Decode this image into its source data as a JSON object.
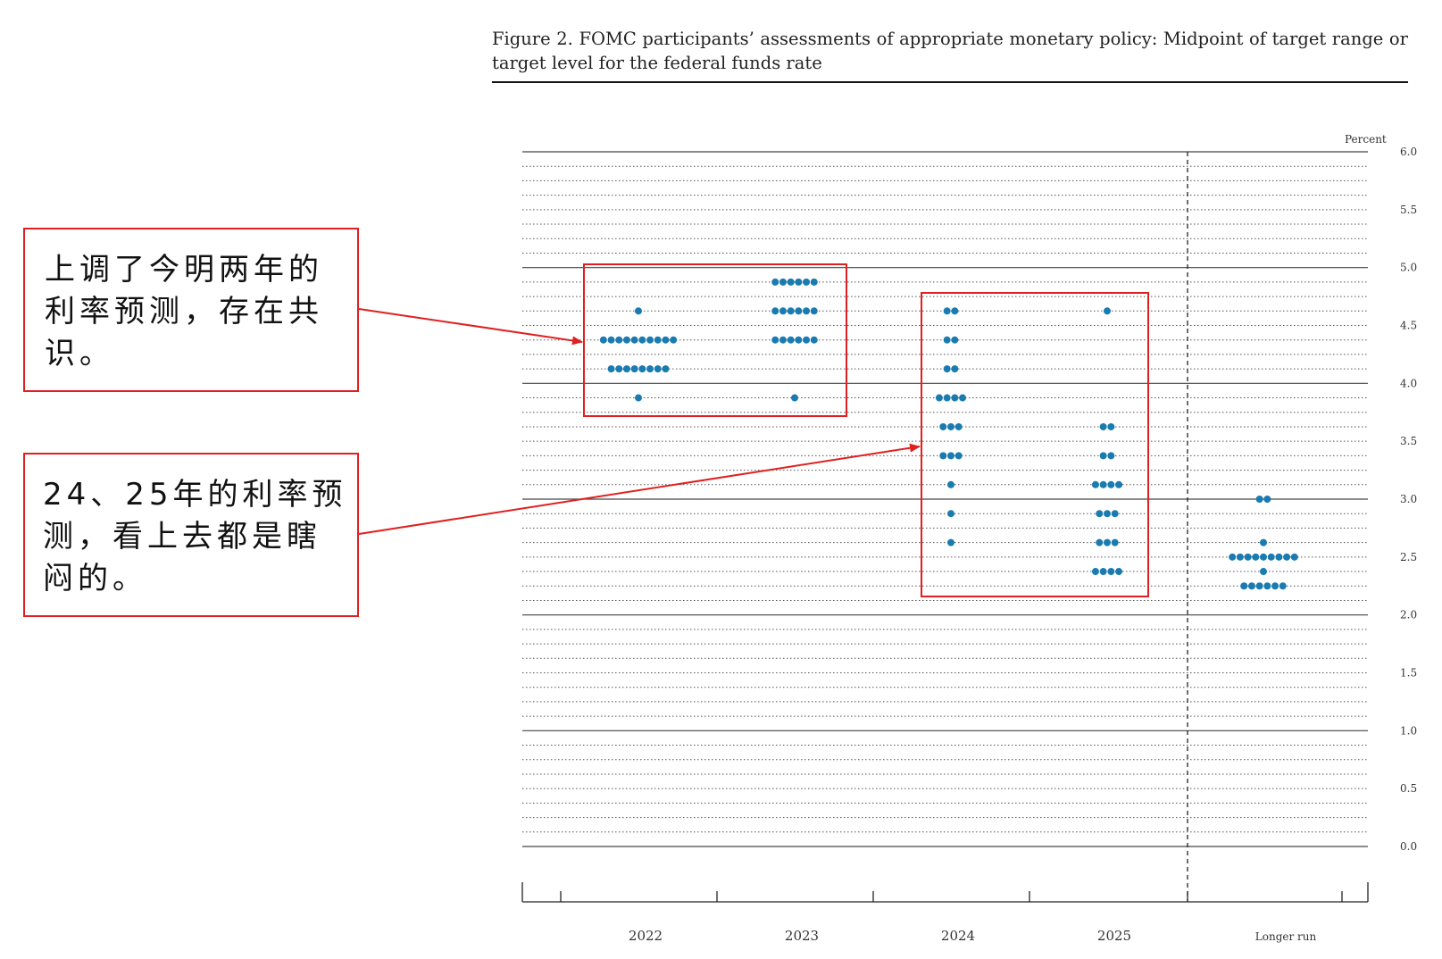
{
  "figure": {
    "title": "Figure 2.  FOMC participants’ assessments of appropriate monetary policy: Midpoint of target range or target level for the federal funds rate"
  },
  "chart_data": {
    "type": "scatter",
    "subtype": "dot-plot",
    "unit_label": "Percent",
    "categories": [
      "2022",
      "2023",
      "2024",
      "2025",
      "Longer run"
    ],
    "y_ticks": [
      "6.0",
      "5.5",
      "5.0",
      "4.5",
      "4.0",
      "3.5",
      "3.0",
      "2.5",
      "2.0",
      "1.5",
      "1.0",
      "0.5",
      "0.0"
    ],
    "ylim": [
      0,
      6
    ],
    "grid": "dotted horizontal lines every 0.125, solid every 1.0",
    "vertical_divider_before": "Longer run",
    "dot_color": "#1a7bb0",
    "series": [
      {
        "category": "2022",
        "dots": [
          {
            "y": 4.625,
            "count": 1
          },
          {
            "y": 4.375,
            "count": 10
          },
          {
            "y": 4.125,
            "count": 8
          },
          {
            "y": 3.875,
            "count": 1
          }
        ]
      },
      {
        "category": "2023",
        "dots": [
          {
            "y": 4.875,
            "count": 6
          },
          {
            "y": 4.625,
            "count": 6
          },
          {
            "y": 4.375,
            "count": 6
          },
          {
            "y": 3.875,
            "count": 1
          }
        ]
      },
      {
        "category": "2024",
        "dots": [
          {
            "y": 4.625,
            "count": 2
          },
          {
            "y": 4.375,
            "count": 2
          },
          {
            "y": 4.125,
            "count": 2
          },
          {
            "y": 3.875,
            "count": 4
          },
          {
            "y": 3.625,
            "count": 3
          },
          {
            "y": 3.375,
            "count": 3
          },
          {
            "y": 3.125,
            "count": 1
          },
          {
            "y": 2.875,
            "count": 1
          },
          {
            "y": 2.625,
            "count": 1
          }
        ]
      },
      {
        "category": "2025",
        "dots": [
          {
            "y": 4.625,
            "count": 1
          },
          {
            "y": 3.625,
            "count": 2
          },
          {
            "y": 3.375,
            "count": 2
          },
          {
            "y": 3.125,
            "count": 4
          },
          {
            "y": 2.875,
            "count": 3
          },
          {
            "y": 2.625,
            "count": 3
          },
          {
            "y": 2.375,
            "count": 4
          }
        ]
      },
      {
        "category": "Longer run",
        "dots": [
          {
            "y": 3.0,
            "count": 2
          },
          {
            "y": 2.625,
            "count": 1
          },
          {
            "y": 2.5,
            "count": 9
          },
          {
            "y": 2.375,
            "count": 1
          },
          {
            "y": 2.25,
            "count": 6
          }
        ]
      }
    ]
  },
  "annotations": [
    {
      "text": "上调了今明两年的利率预测，存在共识。",
      "color": "#e02020"
    },
    {
      "text": "24、25年的利率预测，看上去都是瞎闷的。",
      "color": "#e02020"
    }
  ]
}
